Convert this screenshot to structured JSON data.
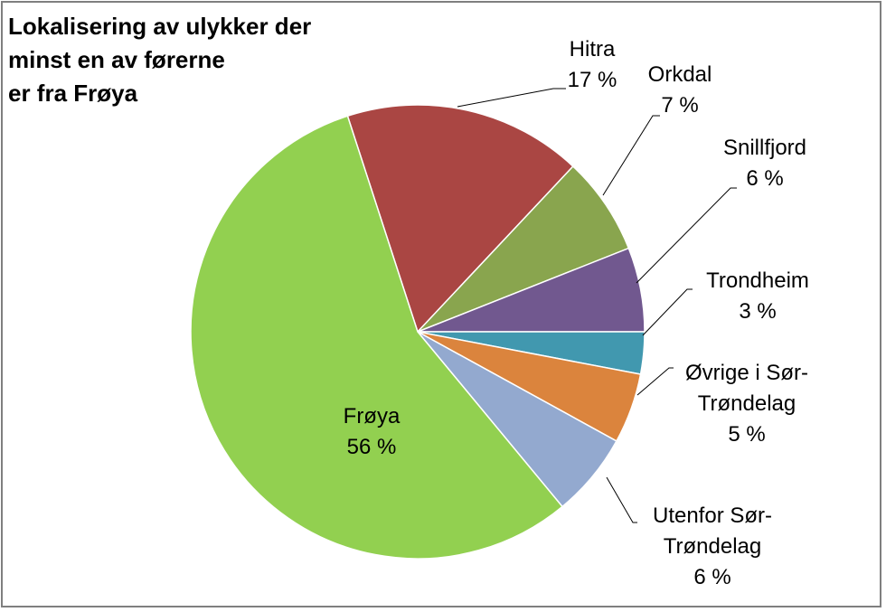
{
  "chart_data": {
    "type": "pie",
    "title_lines": [
      "Lokalisering av ulykker der",
      "minst en av førerne",
      "er fra Frøya"
    ],
    "start_angle_deg": -18,
    "slices": [
      {
        "name": "Hitra",
        "label_lines": [
          "Hitra",
          "17 %"
        ],
        "value": 17,
        "color": "#AA4643"
      },
      {
        "name": "Orkdal",
        "label_lines": [
          "Orkdal",
          "7 %"
        ],
        "value": 7,
        "color": "#89A54E"
      },
      {
        "name": "Snillfjord",
        "label_lines": [
          "Snillfjord",
          "6 %"
        ],
        "value": 6,
        "color": "#71588F"
      },
      {
        "name": "Trondheim",
        "label_lines": [
          "Trondheim",
          "3 %"
        ],
        "value": 3,
        "color": "#4198AF"
      },
      {
        "name": "Øvrige i Sør-Trøndelag",
        "label_lines": [
          "Øvrige i Sør-",
          "Trøndelag",
          "5 %"
        ],
        "value": 5,
        "color": "#DB843D"
      },
      {
        "name": "Utenfor Sør-Trøndelag",
        "label_lines": [
          "Utenfor Sør-",
          "Trøndelag",
          "6 %"
        ],
        "value": 6,
        "color": "#93A9CF"
      },
      {
        "name": "Frøya",
        "label_lines": [
          "Frøya",
          "56 %"
        ],
        "value": 56,
        "color": "#92D050"
      }
    ]
  }
}
